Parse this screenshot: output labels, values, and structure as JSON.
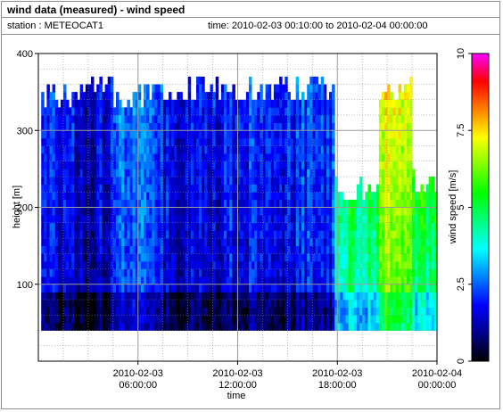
{
  "window": {
    "title": "wind data (measured) - wind speed",
    "station_text": "station : METEOCAT1",
    "time_text": "time: 2010-02-03 00:10:00 to 2010-02-04 00:00:00"
  },
  "chart_data": {
    "type": "heatmap",
    "title": "wind data (measured) - wind speed",
    "xlabel": "time",
    "ylabel": "height [m]",
    "colorbar_label": "wind speed [m/s]",
    "xlim": [
      "2010-02-03 00:00:00",
      "2010-02-04 00:00:00"
    ],
    "x_ticks": [
      {
        "line1": "2010-02-03",
        "line2": "06:00:00",
        "hour": 6
      },
      {
        "line1": "2010-02-03",
        "line2": "12:00:00",
        "hour": 12
      },
      {
        "line1": "2010-02-03",
        "line2": "18:00:00",
        "hour": 18
      },
      {
        "line1": "2010-02-04",
        "line2": "00:00:00",
        "hour": 24
      }
    ],
    "ylim": [
      0,
      400
    ],
    "y_ticks": [
      "100",
      "200",
      "300",
      "400"
    ],
    "y_tick_values": [
      100,
      200,
      300,
      400
    ],
    "colorbar_range": [
      0,
      10
    ],
    "colorbar_ticks": [
      "0",
      "2.5",
      "5",
      "7.5",
      "10"
    ],
    "colorbar_tick_values": [
      0,
      2.5,
      5,
      7.5,
      10
    ],
    "colormap": [
      "#000000",
      "#00008b",
      "#0000ff",
      "#0080ff",
      "#00ffff",
      "#00ff80",
      "#00ff00",
      "#80ff00",
      "#ffff00",
      "#ff8000",
      "#ff0000",
      "#ff00ff"
    ],
    "grid": true,
    "height_range_m": [
      40,
      370
    ],
    "time_resolution_minutes": 10,
    "segments": [
      {
        "from_hour": 0.17,
        "to_hour": 2.0,
        "top_m": 360,
        "typical_speed_ms": 1.5
      },
      {
        "from_hour": 2.0,
        "to_hour": 4.5,
        "top_m": 370,
        "typical_speed_ms": 1.2
      },
      {
        "from_hour": 4.5,
        "to_hour": 7.5,
        "top_m": 360,
        "typical_speed_ms": 2.2
      },
      {
        "from_hour": 7.5,
        "to_hour": 11.0,
        "top_m": 370,
        "typical_speed_ms": 1.3
      },
      {
        "from_hour": 11.0,
        "to_hour": 15.5,
        "top_m": 370,
        "typical_speed_ms": 1.6
      },
      {
        "from_hour": 15.5,
        "to_hour": 17.8,
        "top_m": 370,
        "typical_speed_ms": 1.8
      },
      {
        "from_hour": 17.8,
        "to_hour": 20.5,
        "top_m": 240,
        "typical_speed_ms": 4.2
      },
      {
        "from_hour": 20.5,
        "to_hour": 22.5,
        "top_m": 370,
        "typical_speed_ms": 5.8
      },
      {
        "from_hour": 22.5,
        "to_hour": 24.0,
        "top_m": 250,
        "typical_speed_ms": 4.5
      }
    ]
  }
}
